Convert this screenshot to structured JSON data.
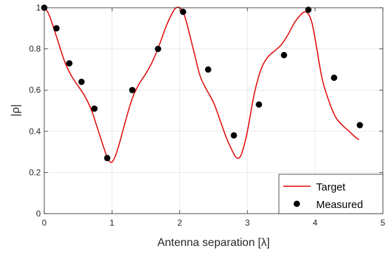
{
  "chart_data": {
    "type": "line",
    "xlabel": "Antenna separation [λ]",
    "ylabel": "|ρ|",
    "xlim": [
      0,
      5
    ],
    "ylim": [
      0,
      1
    ],
    "xticks": [
      0,
      1,
      2,
      3,
      4,
      5
    ],
    "yticks": [
      0,
      0.2,
      0.4,
      0.6,
      0.8,
      1
    ],
    "xtick_labels": [
      "0",
      "1",
      "2",
      "3",
      "4",
      "5"
    ],
    "ytick_labels": [
      "0",
      "0.2",
      "0.4",
      "0.6",
      "0.8",
      "1"
    ],
    "grid": true,
    "legend_position": "bottom-right",
    "series": [
      {
        "name": "Target",
        "kind": "line",
        "color": "#e00000",
        "x": [
          0,
          0.05,
          0.1,
          0.2,
          0.3,
          0.4,
          0.5,
          0.6,
          0.7,
          0.8,
          0.9,
          0.95,
          1.0,
          1.05,
          1.1,
          1.2,
          1.3,
          1.4,
          1.5,
          1.6,
          1.7,
          1.8,
          1.9,
          1.95,
          2.0,
          2.05,
          2.1,
          2.2,
          2.3,
          2.4,
          2.5,
          2.6,
          2.7,
          2.8,
          2.85,
          2.9,
          2.95,
          3.0,
          3.1,
          3.2,
          3.3,
          3.4,
          3.5,
          3.6,
          3.7,
          3.8,
          3.85,
          3.9,
          3.95,
          4.0,
          4.1,
          4.2,
          4.3,
          4.4,
          4.5,
          4.6,
          4.65
        ],
        "y": [
          1.0,
          0.98,
          0.94,
          0.84,
          0.74,
          0.67,
          0.62,
          0.57,
          0.5,
          0.4,
          0.3,
          0.26,
          0.25,
          0.28,
          0.33,
          0.45,
          0.56,
          0.63,
          0.68,
          0.74,
          0.82,
          0.91,
          0.98,
          1.0,
          1.0,
          0.98,
          0.93,
          0.8,
          0.67,
          0.6,
          0.54,
          0.45,
          0.36,
          0.29,
          0.27,
          0.28,
          0.33,
          0.4,
          0.58,
          0.7,
          0.76,
          0.79,
          0.82,
          0.87,
          0.93,
          0.97,
          0.98,
          0.97,
          0.93,
          0.85,
          0.66,
          0.55,
          0.47,
          0.43,
          0.4,
          0.37,
          0.36
        ]
      },
      {
        "name": "Measured",
        "kind": "scatter",
        "color": "#000000",
        "x": [
          0.0,
          0.18,
          0.37,
          0.55,
          0.74,
          0.93,
          1.3,
          1.68,
          2.05,
          2.42,
          2.8,
          3.17,
          3.54,
          3.9,
          4.28,
          4.66
        ],
        "y": [
          1.0,
          0.9,
          0.73,
          0.64,
          0.51,
          0.27,
          0.6,
          0.8,
          0.98,
          0.7,
          0.38,
          0.53,
          0.77,
          0.99,
          0.66,
          0.43
        ]
      }
    ]
  }
}
